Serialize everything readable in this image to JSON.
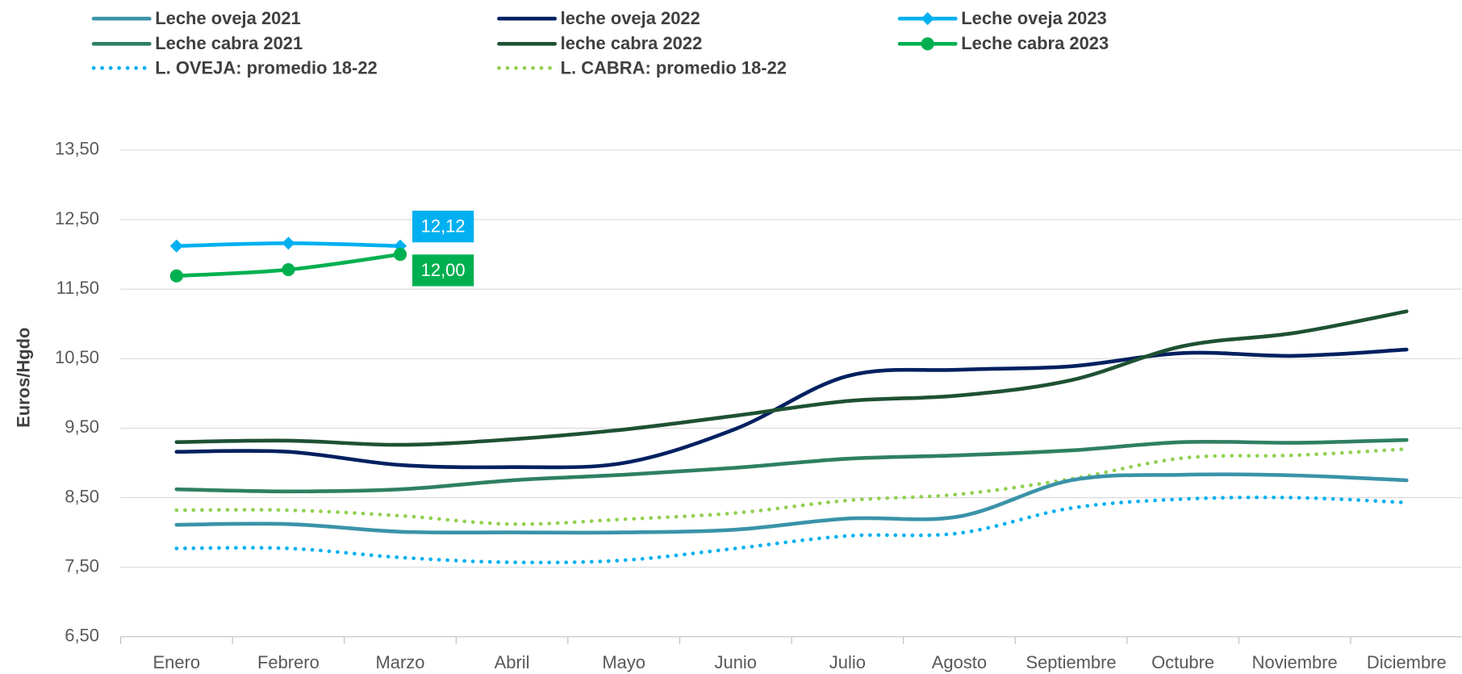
{
  "chart_data": {
    "type": "line",
    "y_label": "Euros/Hgdo",
    "categories": [
      "Enero",
      "Febrero",
      "Marzo",
      "Abril",
      "Mayo",
      "Junio",
      "Julio",
      "Agosto",
      "Septiembre",
      "Octubre",
      "Noviembre",
      "Diciembre"
    ],
    "ylim": [
      6.5,
      13.5
    ],
    "yticks": [
      {
        "value": 6.5,
        "label": "6,50"
      },
      {
        "value": 7.5,
        "label": "7,50"
      },
      {
        "value": 8.5,
        "label": "8,50"
      },
      {
        "value": 9.5,
        "label": "9,50"
      },
      {
        "value": 10.5,
        "label": "10,50"
      },
      {
        "value": 11.5,
        "label": "11,50"
      },
      {
        "value": 12.5,
        "label": "12,50"
      },
      {
        "value": 13.5,
        "label": "13,50"
      }
    ],
    "grid": true,
    "series": [
      {
        "name": "Leche oveja 2021",
        "color": "#3a93a8",
        "style": "solid",
        "values": [
          8.11,
          8.12,
          8.01,
          8.0,
          8.0,
          8.04,
          8.2,
          8.23,
          8.75,
          8.83,
          8.82,
          8.75
        ]
      },
      {
        "name": "leche oveja 2022",
        "color": "#002060",
        "style": "solid",
        "values": [
          9.16,
          9.16,
          8.97,
          8.94,
          9.0,
          9.49,
          10.25,
          10.34,
          10.39,
          10.58,
          10.54,
          10.63
        ]
      },
      {
        "name": "Leche oveja 2023",
        "color": "#00b0f0",
        "style": "solid",
        "marker": "diamond",
        "values": [
          12.12,
          12.16,
          12.12,
          null,
          null,
          null,
          null,
          null,
          null,
          null,
          null,
          null
        ],
        "value_labels": [
          null,
          null,
          "12,12",
          null,
          null,
          null,
          null,
          null,
          null,
          null,
          null,
          null
        ]
      },
      {
        "name": "Leche cabra 2021",
        "color": "#2e8060",
        "style": "solid",
        "values": [
          8.62,
          8.59,
          8.62,
          8.75,
          8.83,
          8.93,
          9.06,
          9.11,
          9.18,
          9.3,
          9.29,
          9.33
        ]
      },
      {
        "name": "leche cabra 2022",
        "color": "#1e5132",
        "style": "solid",
        "values": [
          9.3,
          9.32,
          9.26,
          9.34,
          9.48,
          9.68,
          9.89,
          9.97,
          10.19,
          10.68,
          10.87,
          11.18
        ]
      },
      {
        "name": "Leche cabra 2023",
        "color": "#00b050",
        "style": "solid",
        "marker": "circle",
        "values": [
          11.69,
          11.78,
          12.0,
          null,
          null,
          null,
          null,
          null,
          null,
          null,
          null,
          null
        ],
        "value_labels": [
          null,
          null,
          "12,00",
          null,
          null,
          null,
          null,
          null,
          null,
          null,
          null,
          null
        ]
      },
      {
        "name": "L. OVEJA: promedio 18-22",
        "color": "#00b0f0",
        "style": "dotted",
        "values": [
          7.77,
          7.77,
          7.64,
          7.57,
          7.6,
          7.77,
          7.95,
          7.99,
          8.35,
          8.48,
          8.5,
          8.43
        ]
      },
      {
        "name": "L. CABRA: promedio 18-22",
        "color": "#92d050",
        "style": "dotted",
        "values": [
          8.32,
          8.32,
          8.24,
          8.12,
          8.19,
          8.28,
          8.46,
          8.55,
          8.77,
          9.07,
          9.11,
          9.2
        ]
      }
    ]
  }
}
